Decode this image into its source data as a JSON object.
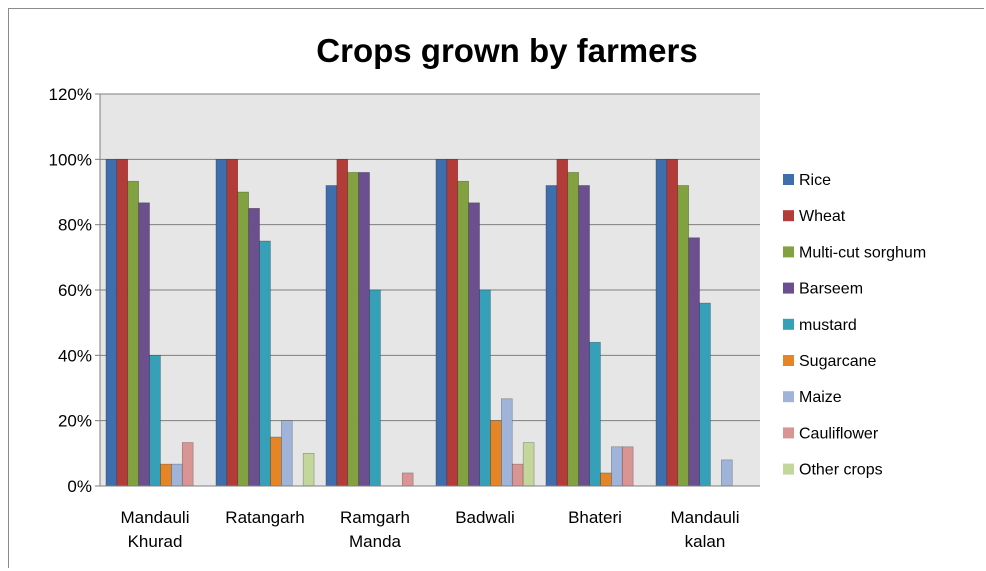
{
  "chart_data": {
    "type": "bar",
    "title": "Crops grown by farmers",
    "xlabel": "",
    "ylabel": "",
    "ylim": [
      0,
      120
    ],
    "y_ticks": [
      "0%",
      "20%",
      "40%",
      "60%",
      "80%",
      "100%",
      "120%"
    ],
    "y_tick_values": [
      0,
      20,
      40,
      60,
      80,
      100,
      120
    ],
    "grid": true,
    "legend_position": "right",
    "categories": [
      [
        "Mandauli",
        "Khurad"
      ],
      [
        "Ratangarh"
      ],
      [
        "Ramgarh",
        "Manda"
      ],
      [
        "Badwali"
      ],
      [
        "Bhateri"
      ],
      [
        "Mandauli",
        "kalan"
      ]
    ],
    "series": [
      {
        "name": "Rice",
        "color": "#3f6ead",
        "values": [
          100,
          100,
          92,
          100,
          92,
          100
        ]
      },
      {
        "name": "Wheat",
        "color": "#b33b38",
        "values": [
          100,
          100,
          100,
          100,
          100,
          100
        ]
      },
      {
        "name": "Multi-cut sorghum",
        "color": "#82a140",
        "values": [
          93.3,
          90,
          96,
          93.3,
          96,
          92
        ]
      },
      {
        "name": "Barseem",
        "color": "#6c4f8f",
        "values": [
          86.7,
          85,
          96,
          86.7,
          92,
          76
        ]
      },
      {
        "name": "mustard",
        "color": "#36a0b8",
        "values": [
          40,
          75,
          60,
          60,
          44,
          56
        ]
      },
      {
        "name": "Sugarcane",
        "color": "#e58526",
        "values": [
          6.7,
          15,
          0,
          20,
          4,
          0
        ]
      },
      {
        "name": "Maize",
        "color": "#9fb4d8",
        "values": [
          6.7,
          20,
          0,
          26.7,
          12,
          8
        ]
      },
      {
        "name": "Cauliflower",
        "color": "#d99594",
        "values": [
          13.3,
          0,
          4,
          6.7,
          12,
          0
        ]
      },
      {
        "name": "Other crops",
        "color": "#c3d69b",
        "values": [
          0,
          10,
          0,
          13.3,
          0,
          0
        ]
      }
    ],
    "plot_background": "#e6e6e6",
    "gridline_color": "#7f7f7f"
  }
}
